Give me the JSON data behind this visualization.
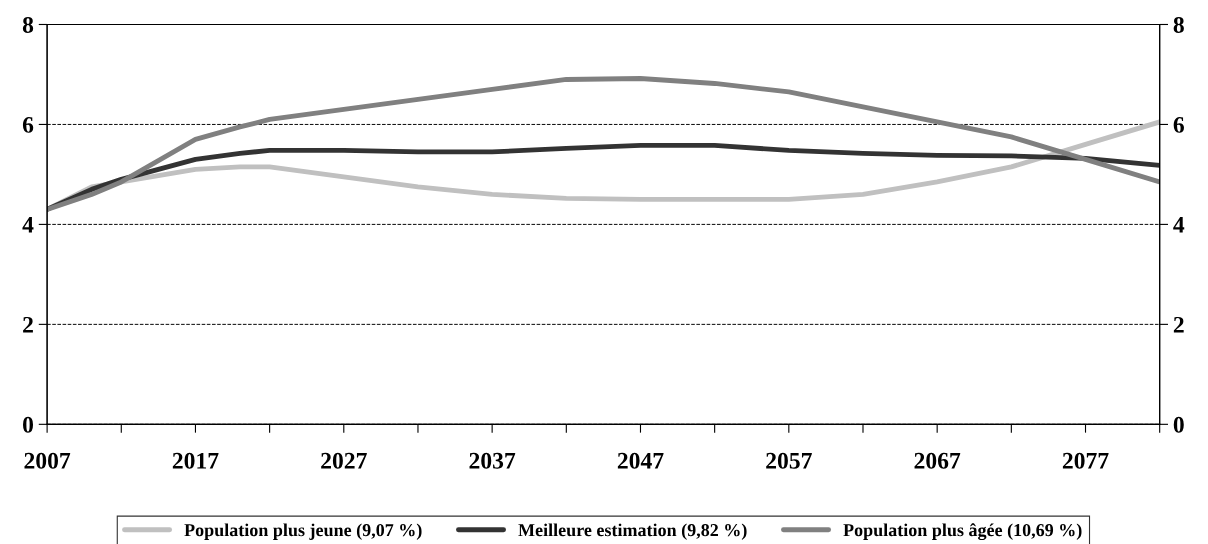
{
  "chart_data": {
    "type": "line",
    "x": [
      2007,
      2010,
      2012,
      2017,
      2020,
      2022,
      2027,
      2032,
      2037,
      2042,
      2047,
      2052,
      2057,
      2062,
      2067,
      2072,
      2077,
      2082
    ],
    "series": [
      {
        "name": "Population plus jeune (9,07 %)",
        "color": "#c0c0c0",
        "values": [
          4.3,
          4.75,
          4.85,
          5.1,
          5.15,
          5.15,
          4.95,
          4.75,
          4.6,
          4.52,
          4.5,
          4.5,
          4.5,
          4.6,
          4.85,
          5.15,
          5.6,
          6.05
        ]
      },
      {
        "name": "Meilleure estimation (9,82 %)",
        "color": "#333333",
        "values": [
          4.3,
          4.7,
          4.9,
          5.3,
          5.42,
          5.48,
          5.48,
          5.45,
          5.45,
          5.52,
          5.58,
          5.58,
          5.48,
          5.42,
          5.38,
          5.37,
          5.32,
          5.18
        ]
      },
      {
        "name": "Population plus âgée (10,69 %)",
        "color": "#808080",
        "values": [
          4.3,
          4.6,
          4.85,
          5.7,
          5.95,
          6.1,
          6.3,
          6.5,
          6.7,
          6.9,
          6.92,
          6.82,
          6.65,
          6.35,
          6.05,
          5.75,
          5.3,
          4.85
        ]
      }
    ],
    "xlim": [
      2007,
      2082
    ],
    "xticks": [
      2007,
      {
        "value": 2012,
        "label": null
      },
      2017,
      {
        "value": 2022,
        "label": null
      },
      2027,
      {
        "value": 2032,
        "label": null
      },
      2037,
      {
        "value": 2042,
        "label": null
      },
      2047,
      {
        "value": 2052,
        "label": null
      },
      2057,
      {
        "value": 2062,
        "label": null
      },
      2067,
      {
        "value": 2072,
        "label": null
      },
      2077,
      {
        "value": 2082,
        "label": null
      }
    ],
    "ylim": [
      0,
      8
    ],
    "yticks": [
      0,
      2,
      4,
      6,
      8
    ],
    "y2lim": [
      0,
      8
    ],
    "y2ticks": [
      0,
      2,
      4,
      6,
      8
    ],
    "grid": "y",
    "legend": "bottom",
    "marker": "none",
    "line_style": "solid"
  }
}
